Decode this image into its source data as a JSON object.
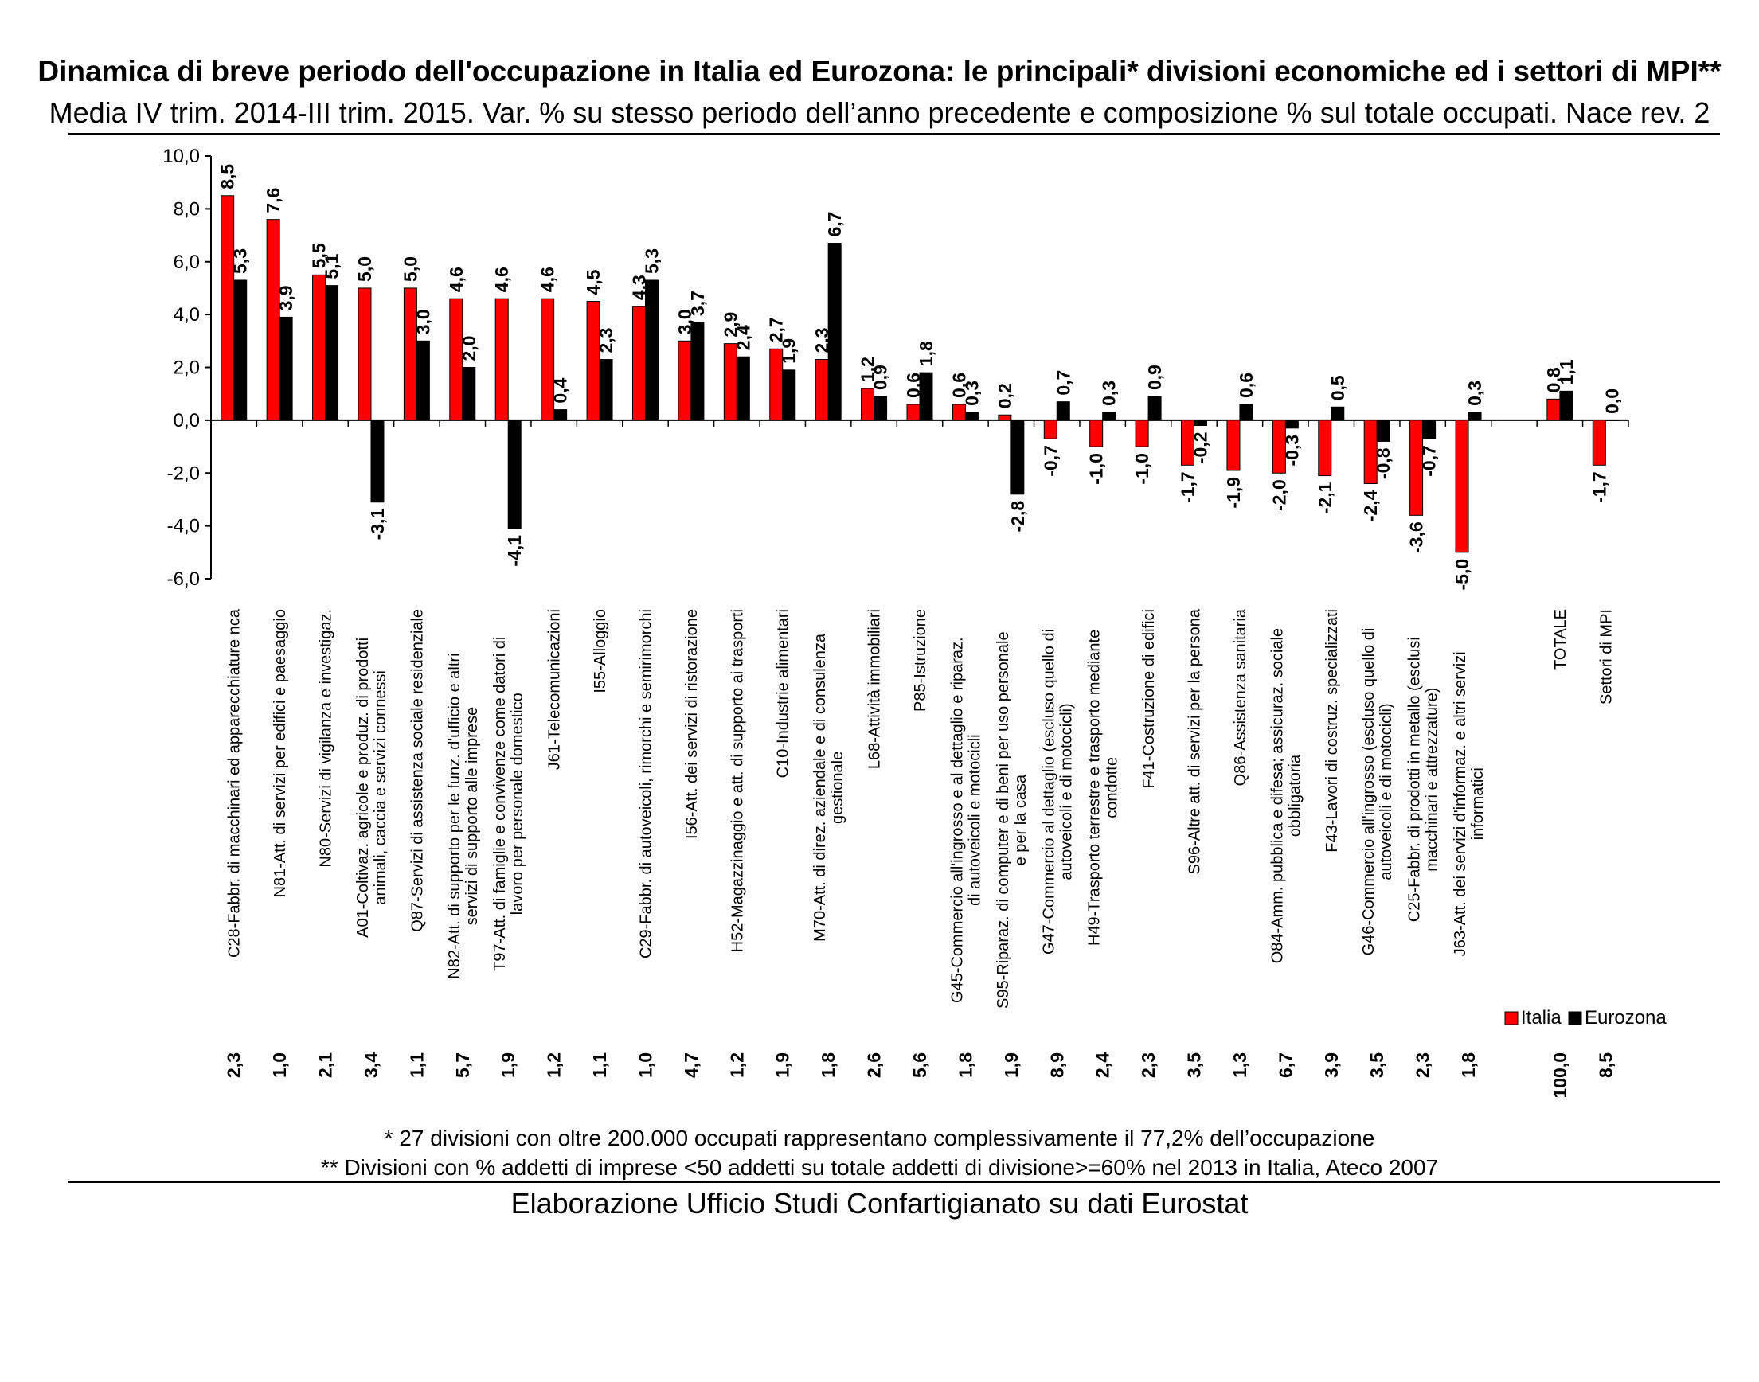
{
  "title": "Dinamica di breve periodo dell'occupazione in Italia ed Eurozona: le principali* divisioni economiche ed i settori di MPI**",
  "subtitle": "Media IV trim. 2014-III trim. 2015. Var. % su stesso periodo dell’anno precedente e composizione % sul totale occupati. Nace rev. 2",
  "footnote1": "* 27 divisioni con oltre 200.000 occupati rappresentano complessivamente il 77,2% dell’occupazione",
  "footnote2": "** Divisioni con % addetti di imprese <50 addetti su totale addetti di divisione>=60% nel 2013 in Italia, Ateco 2007",
  "source": "Elaborazione Ufficio Studi Confartigianato su dati Eurostat",
  "colors": {
    "italia": "#ff0000",
    "eurozona": "#000000"
  },
  "chart_data": {
    "type": "bar",
    "ylim": [
      -6,
      10
    ],
    "yticks": [
      "10,0",
      "8,0",
      "6,0",
      "4,0",
      "2,0",
      "0,0",
      "-2,0",
      "-4,0",
      "-6,0"
    ],
    "legend_position": "bottom-right",
    "categories": [
      "C28-Fabbr. di macchinari ed apparecchiature nca",
      "N81-Att. di servizi per edifici e paesaggio",
      "N80-Servizi di vigilanza e investigaz.",
      "A01-Coltivaz. agricole e produz. di prodotti animali, caccia e servizi connessi",
      "Q87-Servizi di assistenza sociale residenziale",
      "N82-Att. di supporto per le funz. d'ufficio e altri servizi di supporto alle imprese",
      "T97-Att. di famiglie e convivenze come datori di lavoro per personale domestico",
      "J61-Telecomunicazioni",
      "I55-Alloggio",
      "C29-Fabbr. di autoveicoli, rimorchi e semirimorchi",
      "I56-Att. dei servizi di ristorazione",
      "H52-Magazzinaggio e att. di supporto ai trasporti",
      "C10-Industrie alimentari",
      "M70-Att. di direz. aziendale e di consulenza gestionale",
      "L68-Attività immobiliari",
      "P85-Istruzione",
      "G45-Commercio all'ingrosso e al dettaglio e riparaz. di autoveicoli e motocicli",
      "S95-Riparaz. di computer e di beni per uso personale e per la casa",
      "G47-Commercio al dettaglio (escluso quello di autoveicoli e di motocicli)",
      "H49-Trasporto terrestre e trasporto mediante condotte",
      "F41-Costruzione di edifici",
      "S96-Altre att. di servizi per la persona",
      "Q86-Assistenza sanitaria",
      "O84-Amm. pubblica e difesa; assicuraz. sociale obbligatoria",
      "F43-Lavori di costruz. specializzati",
      "G46-Commercio all'ingrosso (escluso quello di autoveicoli e di motocicli)",
      "C25-Fabbr. di prodotti in metallo (esclusi macchinari e attrezzature)",
      "J63-Att. dei servizi d'informaz. e altri servizi informatici",
      "",
      "TOTALE",
      "Settori di MPI"
    ],
    "series": [
      {
        "name": "Italia",
        "values": [
          8.5,
          7.6,
          5.5,
          5.0,
          5.0,
          4.6,
          4.6,
          4.6,
          4.5,
          4.3,
          3.0,
          2.9,
          2.7,
          2.3,
          1.2,
          0.6,
          0.6,
          0.2,
          -0.7,
          -1.0,
          -1.0,
          -1.7,
          -1.9,
          -2.0,
          -2.1,
          -2.4,
          -3.6,
          -5.0,
          null,
          0.8,
          -1.7
        ],
        "labels": [
          "8,5",
          "7,6",
          "5,5",
          "5,0",
          "5,0",
          "4,6",
          "4,6",
          "4,6",
          "4,5",
          "4,3",
          "3,0",
          "2,9",
          "2,7",
          "2,3",
          "1,2",
          "0,6",
          "0,6",
          "0,2",
          "-0,7",
          "-1,0",
          "-1,0",
          "-1,7",
          "-1,9",
          "-2,0",
          "-2,1",
          "-2,4",
          "-3,6",
          "-5,0",
          "",
          "0,8",
          "-1,7"
        ]
      },
      {
        "name": "Eurozona",
        "values": [
          5.3,
          3.9,
          5.1,
          -3.1,
          3.0,
          2.0,
          -4.1,
          0.4,
          2.3,
          5.3,
          3.7,
          2.4,
          1.9,
          6.7,
          0.9,
          1.8,
          0.3,
          -2.8,
          0.7,
          0.3,
          0.9,
          -0.2,
          0.6,
          -0.3,
          0.5,
          -0.8,
          -0.7,
          0.3,
          null,
          1.1,
          0.0
        ],
        "labels": [
          "5,3",
          "3,9",
          "5,1",
          "-3,1",
          "3,0",
          "2,0",
          "-4,1",
          "0,4",
          "2,3",
          "5,3",
          "3,7",
          "2,4",
          "1,9",
          "6,7",
          "0,9",
          "1,8",
          "0,3",
          "-2,8",
          "0,7",
          "0,3",
          "0,9",
          "-0,2",
          "0,6",
          "-0,3",
          "0,5",
          "-0,8",
          "-0,7",
          "0,3",
          "",
          "1,1",
          "0,0"
        ]
      }
    ],
    "composition_pct": [
      "2,3",
      "1,0",
      "2,1",
      "3,4",
      "1,1",
      "5,7",
      "1,9",
      "1,2",
      "1,1",
      "1,0",
      "4,7",
      "1,2",
      "1,9",
      "1,8",
      "2,6",
      "5,6",
      "1,8",
      "1,9",
      "8,9",
      "2,4",
      "2,3",
      "3,5",
      "1,3",
      "6,7",
      "3,9",
      "3,5",
      "2,3",
      "1,8",
      "",
      "100,0",
      "8,5"
    ]
  }
}
